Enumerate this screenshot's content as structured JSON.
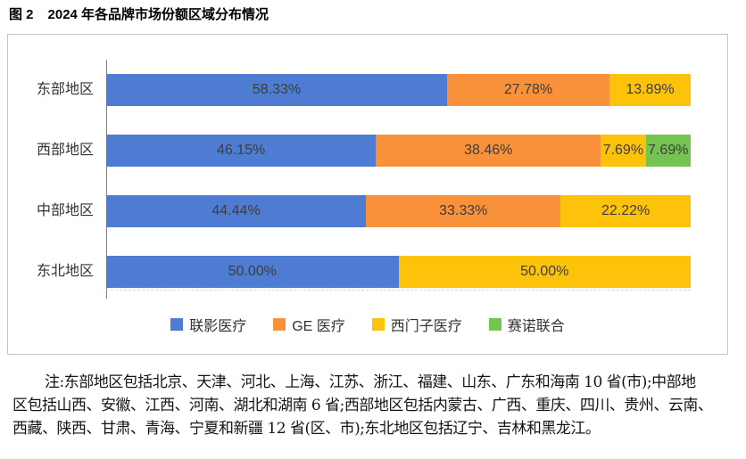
{
  "title": {
    "figure_label": "图 2",
    "text": "2024 年各品牌市场份额区域分布情况"
  },
  "chart_data": {
    "type": "bar",
    "variant": "horizontal-stacked",
    "title": "2024 年各品牌市场份额区域分布情况",
    "categories": [
      "东部地区",
      "西部地区",
      "中部地区",
      "东北地区"
    ],
    "series": [
      {
        "name": "联影医疗",
        "color": "#4D7CD2",
        "values": [
          58.33,
          46.15,
          44.44,
          50.0
        ]
      },
      {
        "name": "GE 医疗",
        "color": "#F89139",
        "values": [
          27.78,
          38.46,
          33.33,
          0
        ]
      },
      {
        "name": "西门子医疗",
        "color": "#FDC30B",
        "values": [
          13.89,
          7.69,
          22.22,
          50.0
        ]
      },
      {
        "name": "赛诺联合",
        "color": "#75C451",
        "values": [
          0,
          7.69,
          0,
          0
        ]
      }
    ],
    "value_label_format": "0.00%",
    "xlim": [
      0,
      100
    ],
    "grid": false,
    "legend_position": "bottom"
  },
  "note": {
    "lines": [
      "注:东部地区包括北京、天津、河北、上海、江苏、浙江、福建、山东、广东和海南 10 省(市);中部地",
      "区包括山西、安徽、江西、河南、湖北和湖南 6 省;西部地区包括内蒙古、广西、重庆、四川、贵州、云南、",
      "西藏、陕西、甘肃、青海、宁夏和新疆 12 省(区、市);东北地区包括辽宁、吉林和黑龙江。"
    ]
  },
  "colors": {
    "axis_line": "#7F7F7F",
    "box_border": "#C6C6C6",
    "value_label_text": "#3D3D3D",
    "category_label_text": "#333333"
  }
}
